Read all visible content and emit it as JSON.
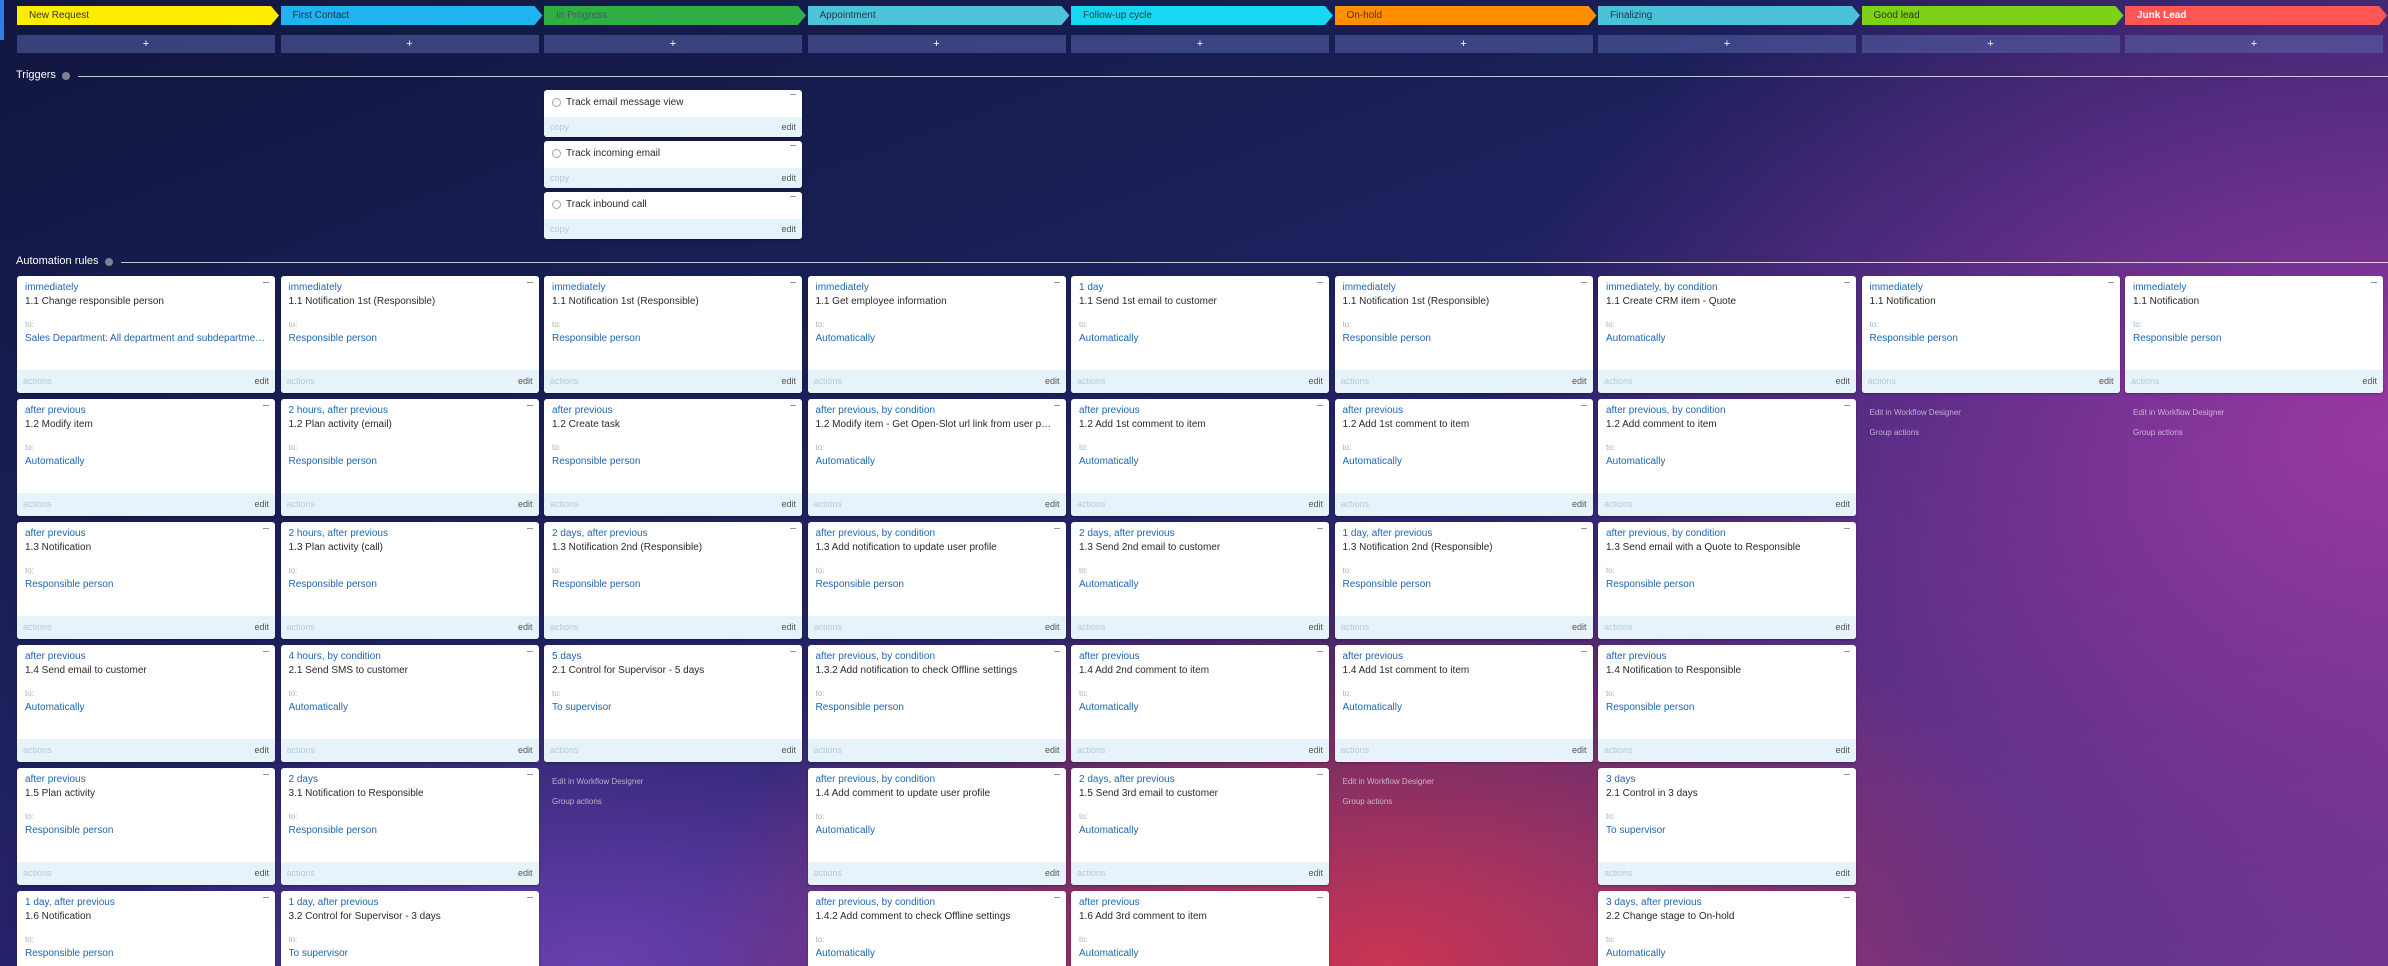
{
  "stages": [
    {
      "name": "New Request",
      "color": "#ffed00",
      "text_color": "#333333"
    },
    {
      "name": "First Contact",
      "color": "#1fb4f0",
      "text_color": "#1c2e4a"
    },
    {
      "name": "In Progress",
      "color": "#2fae45",
      "text_color": "#4a5a58"
    },
    {
      "name": "Appointment",
      "color": "#4ec4da",
      "text_color": "#1c3a4a"
    },
    {
      "name": "Follow-up cycle",
      "color": "#17d8f3",
      "text_color": "#1c3a4a"
    },
    {
      "name": "On-hold",
      "color": "#ff8f00",
      "text_color": "#5a2d12"
    },
    {
      "name": "Finalizing",
      "color": "#4bc0d9",
      "text_color": "#1c3a4a"
    },
    {
      "name": "Good lead",
      "color": "#7dd117",
      "text_color": "#2a3a12"
    },
    {
      "name": "Junk Lead",
      "color": "#ff5654",
      "text_color": "#ffffff"
    }
  ],
  "add_label": "+",
  "labels": {
    "to": "to:",
    "actions": "actions",
    "edit": "edit",
    "copy": "copy",
    "designer": "Edit in Workflow Designer",
    "group": "Group actions"
  },
  "triggers": {
    "heading": "Triggers",
    "items": [
      "Track email message view",
      "Track incoming email",
      "Track inbound call"
    ]
  },
  "rules": {
    "heading": "Automation rules",
    "columns": [
      [
        {
          "timing": "immediately",
          "title": "1.1 Change responsible person",
          "to": "Sales Department: All department and subdepartment..."
        },
        {
          "timing": "after previous",
          "title": "1.2 Modify item",
          "to": "Automatically"
        },
        {
          "timing": "after previous",
          "title": "1.3 Notification",
          "to": "Responsible person"
        },
        {
          "timing": "after previous",
          "title": "1.4 Send email to customer",
          "to": "Automatically"
        },
        {
          "timing": "after previous",
          "title": "1.5 Plan activity",
          "to": "Responsible person"
        },
        {
          "timing": "1 day, after previous",
          "title": "1.6 Notification",
          "to": "Responsible person"
        }
      ],
      [
        {
          "timing": "immediately",
          "title": "1.1 Notification 1st (Responsible)",
          "to": "Responsible person"
        },
        {
          "timing": "2 hours, after previous",
          "title": "1.2 Plan activity (email)",
          "to": "Responsible person"
        },
        {
          "timing": "2 hours, after previous",
          "title": "1.3 Plan activity (call)",
          "to": "Responsible person"
        },
        {
          "timing": "4 hours, by condition",
          "title": "2.1 Send SMS to customer",
          "to": "Automatically"
        },
        {
          "timing": "2 days",
          "title": "3.1 Notification to Responsible",
          "to": "Responsible person"
        },
        {
          "timing": "1 day, after previous",
          "title": "3.2 Control for Supervisor - 3 days",
          "to": "To supervisor"
        }
      ],
      [
        {
          "timing": "immediately",
          "title": "1.1 Notification 1st (Responsible)",
          "to": "Responsible person"
        },
        {
          "timing": "after previous",
          "title": "1.2 Create task",
          "to": "Responsible person"
        },
        {
          "timing": "2 days, after previous",
          "title": "1.3 Notification 2nd (Responsible)",
          "to": "Responsible person"
        },
        {
          "timing": "5 days",
          "title": "2.1 Control for Supervisor - 5 days",
          "to": "To supervisor"
        }
      ],
      [
        {
          "timing": "immediately",
          "title": "1.1 Get employee information",
          "to": "Automatically"
        },
        {
          "timing": "after previous, by condition",
          "title": "1.2 Modify item - Get Open-Slot url link from user profile",
          "to": "Automatically"
        },
        {
          "timing": "after previous, by condition",
          "title": "1.3 Add notification to update user profile",
          "to": "Responsible person"
        },
        {
          "timing": "after previous, by condition",
          "title": "1.3.2 Add notification to check Offline settings",
          "to": "Responsible person"
        },
        {
          "timing": "after previous, by condition",
          "title": "1.4 Add comment to update user profile",
          "to": "Automatically"
        },
        {
          "timing": "after previous, by condition",
          "title": "1.4.2 Add comment to check Offline settings",
          "to": "Automatically"
        }
      ],
      [
        {
          "timing": "1 day",
          "title": "1.1 Send 1st email to customer",
          "to": "Automatically"
        },
        {
          "timing": "after previous",
          "title": "1.2 Add 1st comment to item",
          "to": "Automatically"
        },
        {
          "timing": "2 days, after previous",
          "title": "1.3 Send 2nd email to customer",
          "to": "Automatically"
        },
        {
          "timing": "after previous",
          "title": "1.4 Add 2nd comment to item",
          "to": "Automatically"
        },
        {
          "timing": "2 days, after previous",
          "title": "1.5 Send 3rd email to customer",
          "to": "Automatically"
        },
        {
          "timing": "after previous",
          "title": "1.6 Add 3rd comment to item",
          "to": "Automatically"
        }
      ],
      [
        {
          "timing": "immediately",
          "title": "1.1 Notification 1st (Responsible)",
          "to": "Responsible person"
        },
        {
          "timing": "after previous",
          "title": "1.2 Add 1st comment to item",
          "to": "Automatically"
        },
        {
          "timing": "1 day, after previous",
          "title": "1.3 Notification 2nd (Responsible)",
          "to": "Responsible person"
        },
        {
          "timing": "after previous",
          "title": "1.4 Add 1st comment to item",
          "to": "Automatically"
        }
      ],
      [
        {
          "timing": "immediately, by condition",
          "title": "1.1 Create CRM item - Quote",
          "to": "Automatically"
        },
        {
          "timing": "after previous, by condition",
          "title": "1.2 Add comment to item",
          "to": "Automatically"
        },
        {
          "timing": "after previous, by condition",
          "title": "1.3 Send email with a Quote to Responsible",
          "to": "Responsible person"
        },
        {
          "timing": "after previous",
          "title": "1.4 Notification to Responsible",
          "to": "Responsible person"
        },
        {
          "timing": "3 days",
          "title": "2.1 Control in 3 days",
          "to": "To supervisor"
        },
        {
          "timing": "3 days, after previous",
          "title": "2.2 Change stage to On-hold",
          "to": "Automatically"
        }
      ],
      [
        {
          "timing": "immediately",
          "title": "1.1 Notification",
          "to": "Responsible person"
        }
      ],
      [
        {
          "timing": "immediately",
          "title": "1.1 Notification",
          "to": "Responsible person"
        }
      ]
    ]
  }
}
